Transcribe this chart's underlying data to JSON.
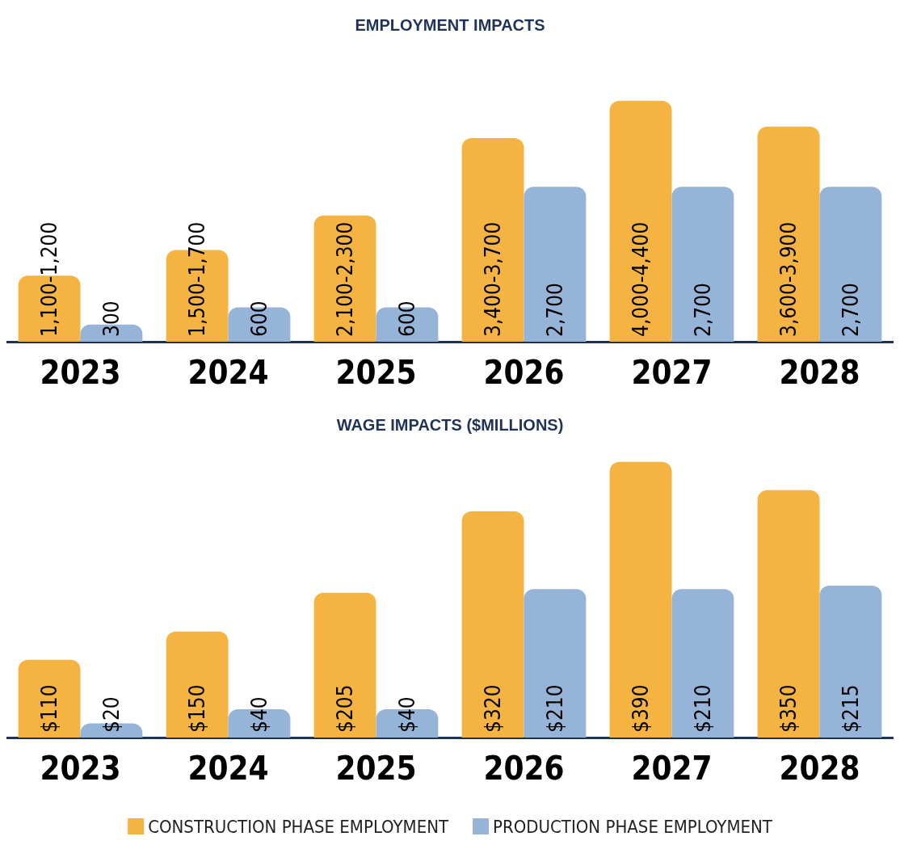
{
  "chart_data": [
    {
      "type": "bar",
      "title": "EMPLOYMENT IMPACTS",
      "categories": [
        "2023",
        "2024",
        "2025",
        "2026",
        "2027",
        "2028"
      ],
      "series": [
        {
          "color": "#f5b441",
          "values": [
            1150,
            1600,
            2200,
            3550,
            4200,
            3750
          ],
          "value_labels": [
            "1,100-1,200",
            "1,500-1,700",
            "2,100-2,300",
            "3,400-3,700",
            "4,000-4,400",
            "3,600-3,900"
          ]
        },
        {
          "color": "#95b4d8",
          "values": [
            300,
            600,
            600,
            2700,
            2700,
            2700
          ],
          "value_labels": [
            "300",
            "600",
            "600",
            "2,700",
            "2,700",
            "2,700"
          ]
        }
      ]
    },
    {
      "type": "bar",
      "title": "WAGE IMPACTS ($MILLIONS)",
      "categories": [
        "2023",
        "2024",
        "2025",
        "2026",
        "2027",
        "2028"
      ],
      "legend": "bottom",
      "series": [
        {
          "name": "CONSTRUCTION PHASE EMPLOYMENT",
          "color": "#f5b441",
          "values": [
            110,
            150,
            205,
            320,
            390,
            350
          ],
          "value_labels": [
            "$110",
            "$150",
            "$205",
            "$320",
            "$390",
            "$350"
          ]
        },
        {
          "name": "PRODUCTION PHASE EMPLOYMENT",
          "color": "#95b4d8",
          "values": [
            20,
            40,
            40,
            210,
            210,
            215
          ],
          "value_labels": [
            "$20",
            "$40",
            "$40",
            "$210",
            "$210",
            "$215"
          ]
        }
      ]
    }
  ]
}
